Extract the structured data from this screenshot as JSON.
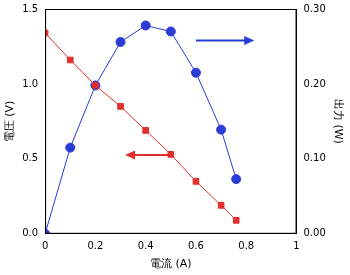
{
  "chart_data": {
    "type": "line",
    "x_label": "電流 (A)",
    "y_label": "電圧 (V)",
    "y2_label": "出力 (W)",
    "x": [
      0,
      0.1,
      0.2,
      0.3,
      0.4,
      0.5,
      0.6,
      0.7,
      0.76
    ],
    "series": [
      {
        "color": "#e0302c",
        "marker": "square",
        "line_style": "solid",
        "axis": "y",
        "values": [
          1.34,
          1.16,
          0.99,
          0.85,
          0.69,
          0.53,
          0.35,
          0.19,
          0.09
        ]
      },
      {
        "color": "#2a3bd6",
        "marker": "circle",
        "line_style": "solid",
        "axis": "y2",
        "values": [
          0,
          0.115,
          0.198,
          0.256,
          0.278,
          0.27,
          0.215,
          0.139,
          0.073
        ]
      }
    ],
    "xlim": [
      0,
      1
    ],
    "xticks": [
      0,
      0.2,
      0.4,
      0.6,
      0.8,
      1
    ],
    "ylim": [
      0,
      1.5
    ],
    "yticks": [
      {
        "value": 0,
        "label": "0.0"
      },
      0.5,
      {
        "value": 1,
        "label": "1.0"
      },
      1.5
    ],
    "y2lim": [
      0,
      0.3
    ],
    "y2ticks": [
      {
        "value": 0,
        "label": "0.00"
      },
      {
        "value": 0.1,
        "label": "0.10"
      },
      {
        "value": 0.2,
        "label": "0.20"
      },
      {
        "value": 0.3,
        "label": "0.30"
      }
    ],
    "grid": false
  }
}
